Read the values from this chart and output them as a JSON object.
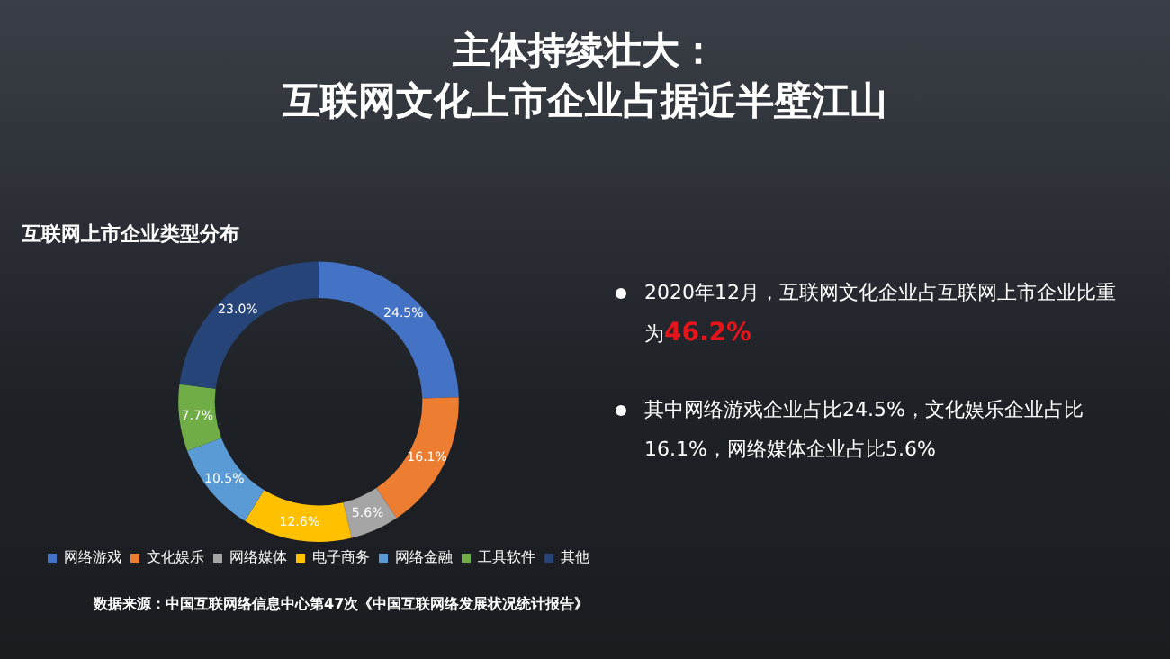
{
  "chart_data": {
    "type": "donut",
    "title": "主体持续壮大：互联网文化上市企业占据近半壁江山",
    "subtitle": "互联网上市企业类型分布",
    "categories": [
      "网络游戏",
      "文化娱乐",
      "网络媒体",
      "电子商务",
      "网络金融",
      "工具软件",
      "其他"
    ],
    "values": [
      24.5,
      16.1,
      5.6,
      12.6,
      10.5,
      7.7,
      23.0
    ],
    "value_labels": [
      "24.5%",
      "16.1%",
      "5.6%",
      "12.6%",
      "10.5%",
      "7.7%",
      "23.0%"
    ],
    "colors": [
      "#4472c4",
      "#ed7d31",
      "#a5a5a5",
      "#ffc000",
      "#5b9bd5",
      "#70ad47",
      "#264478"
    ],
    "legend": "bottom",
    "annotations": [
      "2020年12月，互联网文化企业占互联网上市企业比重为46.2%",
      "其中网络游戏企业占比24.5%，文化娱乐企业占比16.1%，网络媒体企业占比5.6%",
      "数据来源：中国互联网络信息中心第47次《中国互联网络发展状况统计报告》"
    ]
  }
}
